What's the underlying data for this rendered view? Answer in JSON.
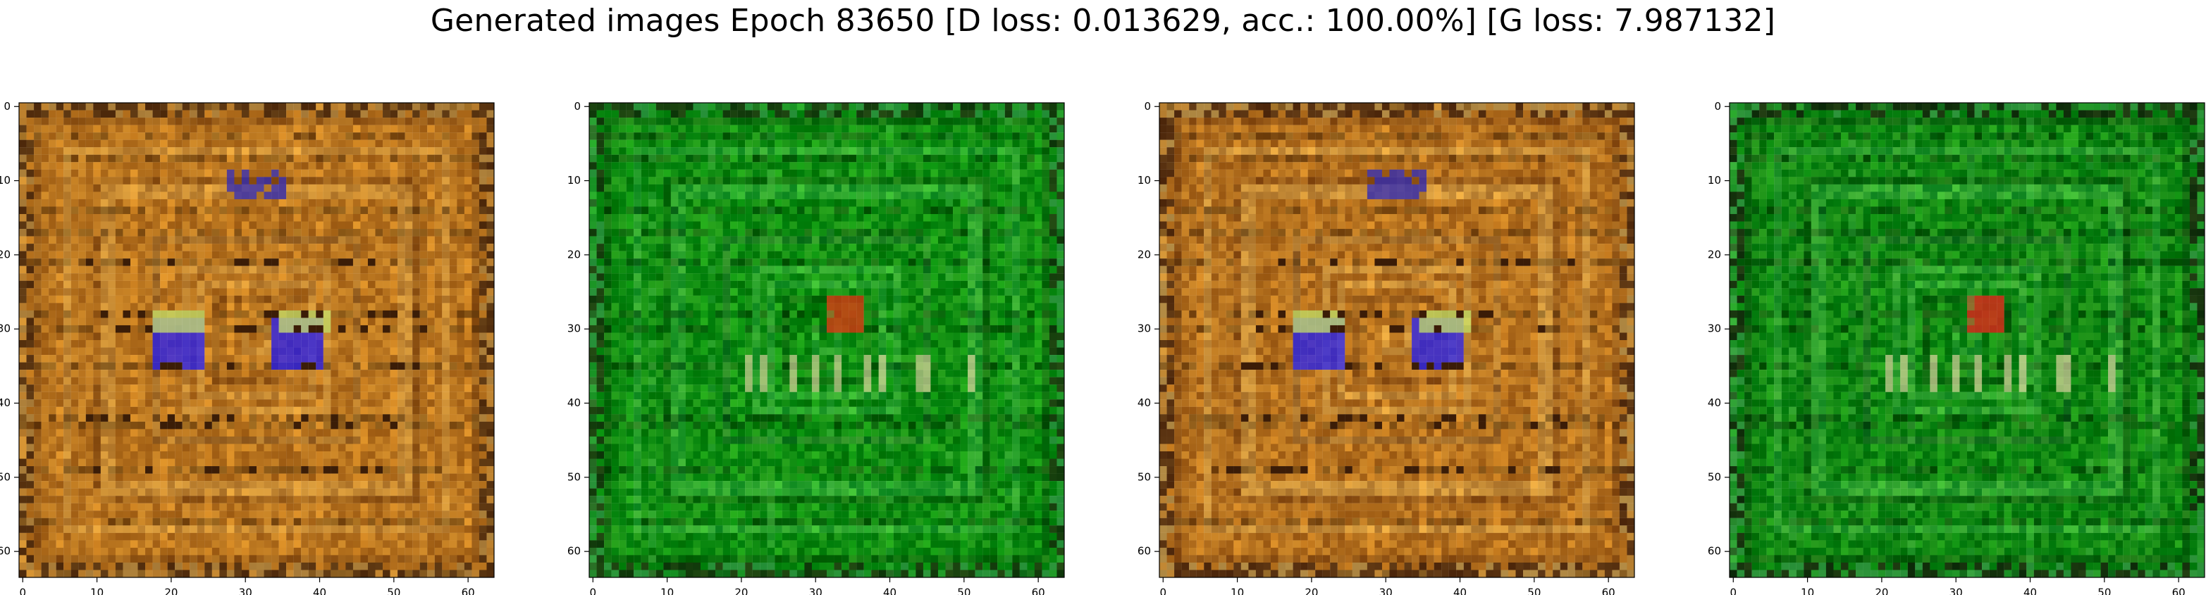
{
  "figure": {
    "title": "Generated images Epoch 83650 [D loss: 0.013629, acc.: 100.00%] [G loss: 7.987132]"
  },
  "panels": [
    {
      "name": "generated-image-1",
      "palette": "amber",
      "x_ticks": [
        "0",
        "10",
        "20",
        "30",
        "40",
        "50",
        "60"
      ],
      "y_ticks": [
        "0",
        "10",
        "20",
        "30",
        "40",
        "50",
        "60"
      ],
      "pixel_grid": 64,
      "colors": {
        "base": "#b7731e",
        "accent": "#d6a24a",
        "shadow": "#5a2d0a",
        "highlight": "#1c17ff",
        "secondary": "#cbe36a"
      }
    },
    {
      "name": "generated-image-2",
      "palette": "green",
      "x_ticks": [
        "0",
        "10",
        "20",
        "30",
        "40",
        "50",
        "60"
      ],
      "y_ticks": [
        "0",
        "10",
        "20",
        "30",
        "40",
        "50",
        "60"
      ],
      "pixel_grid": 64,
      "colors": {
        "base": "#0c8a10",
        "accent": "#45b94a",
        "shadow": "#0a3e08",
        "highlight": "#d33b12",
        "secondary": "#e5d5a4"
      }
    },
    {
      "name": "generated-image-3",
      "palette": "amber",
      "x_ticks": [
        "0",
        "10",
        "20",
        "30",
        "40",
        "50",
        "60"
      ],
      "y_ticks": [
        "0",
        "10",
        "20",
        "30",
        "40",
        "50",
        "60"
      ],
      "pixel_grid": 64,
      "colors": {
        "base": "#b36f1d",
        "accent": "#dcae55",
        "shadow": "#5a2b0b",
        "highlight": "#1d1cff",
        "secondary": "#c8e267"
      }
    },
    {
      "name": "generated-image-4",
      "palette": "green",
      "x_ticks": [
        "0",
        "10",
        "20",
        "30",
        "40",
        "50",
        "60"
      ],
      "y_ticks": [
        "0",
        "10",
        "20",
        "30",
        "40",
        "50",
        "60"
      ],
      "pixel_grid": 64,
      "colors": {
        "base": "#0d8411",
        "accent": "#4aba4b",
        "shadow": "#092f08",
        "highlight": "#db2a1a",
        "secondary": "#eddcaa"
      }
    }
  ]
}
